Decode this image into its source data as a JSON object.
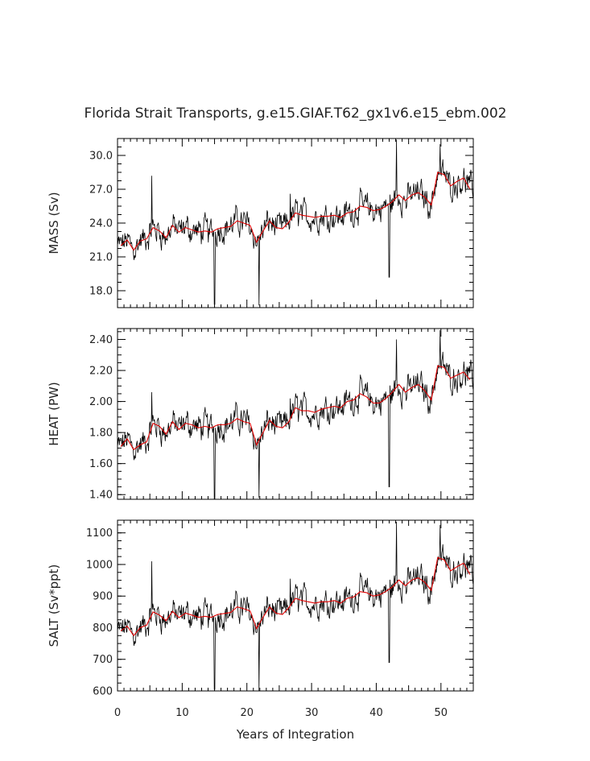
{
  "chart_data": {
    "type": "line",
    "title": "Florida Strait Transports, g.e15.GIAF.T62_gx1v6.e15_ebm.002",
    "xlabel": "Years of Integration",
    "xlim": [
      0,
      55
    ],
    "xticks": [
      0,
      10,
      20,
      30,
      40,
      50
    ],
    "xtick_labels": [
      "0",
      "10",
      "20",
      "30",
      "40",
      "50"
    ],
    "series_colors": {
      "monthly": "#000000",
      "annual_mean": "#e00000"
    },
    "panels": [
      {
        "name": "mass",
        "ylabel": "MASS (Sv)",
        "ylim": [
          16.5,
          31.5
        ],
        "yticks": [
          18.0,
          21.0,
          24.0,
          27.0,
          30.0
        ],
        "ytick_labels": [
          "18.0",
          "21.0",
          "24.0",
          "27.0",
          "30.0"
        ],
        "noise_amp": 1.6,
        "annual_mean": [
          {
            "x": 0.5,
            "y": 22.0
          },
          {
            "x": 1.5,
            "y": 22.5
          },
          {
            "x": 2.5,
            "y": 21.6
          },
          {
            "x": 3.5,
            "y": 22.4
          },
          {
            "x": 4.5,
            "y": 22.6
          },
          {
            "x": 5.5,
            "y": 23.6
          },
          {
            "x": 6.5,
            "y": 23.3
          },
          {
            "x": 7.5,
            "y": 22.7
          },
          {
            "x": 8.5,
            "y": 23.8
          },
          {
            "x": 9.5,
            "y": 23.2
          },
          {
            "x": 10.5,
            "y": 23.6
          },
          {
            "x": 11.5,
            "y": 23.4
          },
          {
            "x": 12.5,
            "y": 23.2
          },
          {
            "x": 13.5,
            "y": 23.3
          },
          {
            "x": 14.5,
            "y": 23.2
          },
          {
            "x": 15.5,
            "y": 23.5
          },
          {
            "x": 16.5,
            "y": 23.6
          },
          {
            "x": 17.5,
            "y": 23.7
          },
          {
            "x": 18.5,
            "y": 24.2
          },
          {
            "x": 19.5,
            "y": 24.0
          },
          {
            "x": 20.5,
            "y": 23.8
          },
          {
            "x": 21.5,
            "y": 22.3
          },
          {
            "x": 22.5,
            "y": 23.3
          },
          {
            "x": 23.5,
            "y": 24.2
          },
          {
            "x": 24.5,
            "y": 23.6
          },
          {
            "x": 25.5,
            "y": 23.5
          },
          {
            "x": 26.5,
            "y": 24.1
          },
          {
            "x": 27.5,
            "y": 24.9
          },
          {
            "x": 28.5,
            "y": 24.7
          },
          {
            "x": 29.5,
            "y": 24.6
          },
          {
            "x": 30.5,
            "y": 24.5
          },
          {
            "x": 31.5,
            "y": 24.6
          },
          {
            "x": 32.5,
            "y": 24.6
          },
          {
            "x": 33.5,
            "y": 24.7
          },
          {
            "x": 34.5,
            "y": 24.5
          },
          {
            "x": 35.5,
            "y": 24.9
          },
          {
            "x": 36.5,
            "y": 25.0
          },
          {
            "x": 37.5,
            "y": 25.5
          },
          {
            "x": 38.5,
            "y": 25.4
          },
          {
            "x": 39.5,
            "y": 25.1
          },
          {
            "x": 40.5,
            "y": 25.2
          },
          {
            "x": 41.5,
            "y": 25.5
          },
          {
            "x": 42.5,
            "y": 25.9
          },
          {
            "x": 43.5,
            "y": 26.5
          },
          {
            "x": 44.5,
            "y": 26.0
          },
          {
            "x": 45.5,
            "y": 26.5
          },
          {
            "x": 46.5,
            "y": 26.7
          },
          {
            "x": 47.5,
            "y": 26.3
          },
          {
            "x": 48.5,
            "y": 25.6
          },
          {
            "x": 49.5,
            "y": 28.5
          },
          {
            "x": 50.5,
            "y": 28.3
          },
          {
            "x": 51.5,
            "y": 27.3
          },
          {
            "x": 52.5,
            "y": 27.7
          },
          {
            "x": 53.5,
            "y": 28.0
          },
          {
            "x": 54.5,
            "y": 27.0
          }
        ],
        "spikes": [
          {
            "x": 5.3,
            "y": 28.2
          },
          {
            "x": 15.0,
            "y": 16.8
          },
          {
            "x": 21.9,
            "y": 16.7
          },
          {
            "x": 26.7,
            "y": 26.6
          },
          {
            "x": 42.0,
            "y": 19.2
          },
          {
            "x": 43.1,
            "y": 31.4
          },
          {
            "x": 49.9,
            "y": 31.0
          }
        ]
      },
      {
        "name": "heat",
        "ylabel": "HEAT (PW)",
        "ylim": [
          1.37,
          2.47
        ],
        "yticks": [
          1.4,
          1.6,
          1.8,
          2.0,
          2.2,
          2.4
        ],
        "ytick_labels": [
          "1.40",
          "1.60",
          "1.80",
          "2.00",
          "2.20",
          "2.40"
        ],
        "noise_amp": 0.12,
        "annual_mean": [
          {
            "x": 0.5,
            "y": 1.71
          },
          {
            "x": 1.5,
            "y": 1.76
          },
          {
            "x": 2.5,
            "y": 1.69
          },
          {
            "x": 3.5,
            "y": 1.72
          },
          {
            "x": 4.5,
            "y": 1.74
          },
          {
            "x": 5.5,
            "y": 1.86
          },
          {
            "x": 6.5,
            "y": 1.84
          },
          {
            "x": 7.5,
            "y": 1.79
          },
          {
            "x": 8.5,
            "y": 1.87
          },
          {
            "x": 9.5,
            "y": 1.82
          },
          {
            "x": 10.5,
            "y": 1.86
          },
          {
            "x": 11.5,
            "y": 1.85
          },
          {
            "x": 12.5,
            "y": 1.83
          },
          {
            "x": 13.5,
            "y": 1.84
          },
          {
            "x": 14.5,
            "y": 1.83
          },
          {
            "x": 15.5,
            "y": 1.85
          },
          {
            "x": 16.5,
            "y": 1.85
          },
          {
            "x": 17.5,
            "y": 1.86
          },
          {
            "x": 18.5,
            "y": 1.89
          },
          {
            "x": 19.5,
            "y": 1.87
          },
          {
            "x": 20.5,
            "y": 1.86
          },
          {
            "x": 21.5,
            "y": 1.72
          },
          {
            "x": 22.5,
            "y": 1.8
          },
          {
            "x": 23.5,
            "y": 1.88
          },
          {
            "x": 24.5,
            "y": 1.84
          },
          {
            "x": 25.5,
            "y": 1.83
          },
          {
            "x": 26.5,
            "y": 1.87
          },
          {
            "x": 27.5,
            "y": 1.96
          },
          {
            "x": 28.5,
            "y": 1.94
          },
          {
            "x": 29.5,
            "y": 1.94
          },
          {
            "x": 30.5,
            "y": 1.93
          },
          {
            "x": 31.5,
            "y": 1.95
          },
          {
            "x": 32.5,
            "y": 1.96
          },
          {
            "x": 33.5,
            "y": 1.97
          },
          {
            "x": 34.5,
            "y": 1.96
          },
          {
            "x": 35.5,
            "y": 2.0
          },
          {
            "x": 36.5,
            "y": 2.01
          },
          {
            "x": 37.5,
            "y": 2.05
          },
          {
            "x": 38.5,
            "y": 2.03
          },
          {
            "x": 39.5,
            "y": 1.99
          },
          {
            "x": 40.5,
            "y": 1.99
          },
          {
            "x": 41.5,
            "y": 2.02
          },
          {
            "x": 42.5,
            "y": 2.06
          },
          {
            "x": 43.5,
            "y": 2.11
          },
          {
            "x": 44.5,
            "y": 2.06
          },
          {
            "x": 45.5,
            "y": 2.09
          },
          {
            "x": 46.5,
            "y": 2.11
          },
          {
            "x": 47.5,
            "y": 2.07
          },
          {
            "x": 48.5,
            "y": 2.01
          },
          {
            "x": 49.5,
            "y": 2.23
          },
          {
            "x": 50.5,
            "y": 2.22
          },
          {
            "x": 51.5,
            "y": 2.15
          },
          {
            "x": 52.5,
            "y": 2.17
          },
          {
            "x": 53.5,
            "y": 2.19
          },
          {
            "x": 54.5,
            "y": 2.14
          }
        ],
        "spikes": [
          {
            "x": 5.3,
            "y": 2.06
          },
          {
            "x": 15.0,
            "y": 1.37
          },
          {
            "x": 21.9,
            "y": 1.38
          },
          {
            "x": 26.7,
            "y": 2.02
          },
          {
            "x": 42.0,
            "y": 1.45
          },
          {
            "x": 43.1,
            "y": 2.4
          },
          {
            "x": 49.9,
            "y": 2.46
          }
        ]
      },
      {
        "name": "salt",
        "ylabel": "SALT (Sv*ppt)",
        "ylim": [
          600,
          1140
        ],
        "yticks": [
          600,
          700,
          800,
          900,
          1000,
          1100
        ],
        "ytick_labels": [
          "600",
          "700",
          "800",
          "900",
          "1000",
          "1100"
        ],
        "noise_amp": 58,
        "annual_mean": [
          {
            "x": 0.5,
            "y": 790
          },
          {
            "x": 1.5,
            "y": 805
          },
          {
            "x": 2.5,
            "y": 775
          },
          {
            "x": 3.5,
            "y": 800
          },
          {
            "x": 4.5,
            "y": 808
          },
          {
            "x": 5.5,
            "y": 850
          },
          {
            "x": 6.5,
            "y": 840
          },
          {
            "x": 7.5,
            "y": 822
          },
          {
            "x": 8.5,
            "y": 852
          },
          {
            "x": 9.5,
            "y": 832
          },
          {
            "x": 10.5,
            "y": 846
          },
          {
            "x": 11.5,
            "y": 840
          },
          {
            "x": 12.5,
            "y": 833
          },
          {
            "x": 13.5,
            "y": 836
          },
          {
            "x": 14.5,
            "y": 833
          },
          {
            "x": 15.5,
            "y": 842
          },
          {
            "x": 16.5,
            "y": 845
          },
          {
            "x": 17.5,
            "y": 848
          },
          {
            "x": 18.5,
            "y": 866
          },
          {
            "x": 19.5,
            "y": 860
          },
          {
            "x": 20.5,
            "y": 853
          },
          {
            "x": 21.5,
            "y": 797
          },
          {
            "x": 22.5,
            "y": 833
          },
          {
            "x": 23.5,
            "y": 866
          },
          {
            "x": 24.5,
            "y": 846
          },
          {
            "x": 25.5,
            "y": 842
          },
          {
            "x": 26.5,
            "y": 864
          },
          {
            "x": 27.5,
            "y": 893
          },
          {
            "x": 28.5,
            "y": 886
          },
          {
            "x": 29.5,
            "y": 882
          },
          {
            "x": 30.5,
            "y": 878
          },
          {
            "x": 31.5,
            "y": 882
          },
          {
            "x": 32.5,
            "y": 882
          },
          {
            "x": 33.5,
            "y": 886
          },
          {
            "x": 34.5,
            "y": 878
          },
          {
            "x": 35.5,
            "y": 893
          },
          {
            "x": 36.5,
            "y": 897
          },
          {
            "x": 37.5,
            "y": 914
          },
          {
            "x": 38.5,
            "y": 911
          },
          {
            "x": 39.5,
            "y": 900
          },
          {
            "x": 40.5,
            "y": 904
          },
          {
            "x": 41.5,
            "y": 915
          },
          {
            "x": 42.5,
            "y": 929
          },
          {
            "x": 43.5,
            "y": 951
          },
          {
            "x": 44.5,
            "y": 933
          },
          {
            "x": 45.5,
            "y": 951
          },
          {
            "x": 46.5,
            "y": 958
          },
          {
            "x": 47.5,
            "y": 944
          },
          {
            "x": 48.5,
            "y": 918
          },
          {
            "x": 49.5,
            "y": 1022
          },
          {
            "x": 50.5,
            "y": 1015
          },
          {
            "x": 51.5,
            "y": 980
          },
          {
            "x": 52.5,
            "y": 993
          },
          {
            "x": 53.5,
            "y": 1004
          },
          {
            "x": 54.5,
            "y": 968
          }
        ],
        "spikes": [
          {
            "x": 5.3,
            "y": 1010
          },
          {
            "x": 15.0,
            "y": 605
          },
          {
            "x": 21.9,
            "y": 600
          },
          {
            "x": 26.7,
            "y": 955
          },
          {
            "x": 42.0,
            "y": 690
          },
          {
            "x": 43.1,
            "y": 1135
          },
          {
            "x": 49.9,
            "y": 1125
          }
        ]
      }
    ]
  }
}
